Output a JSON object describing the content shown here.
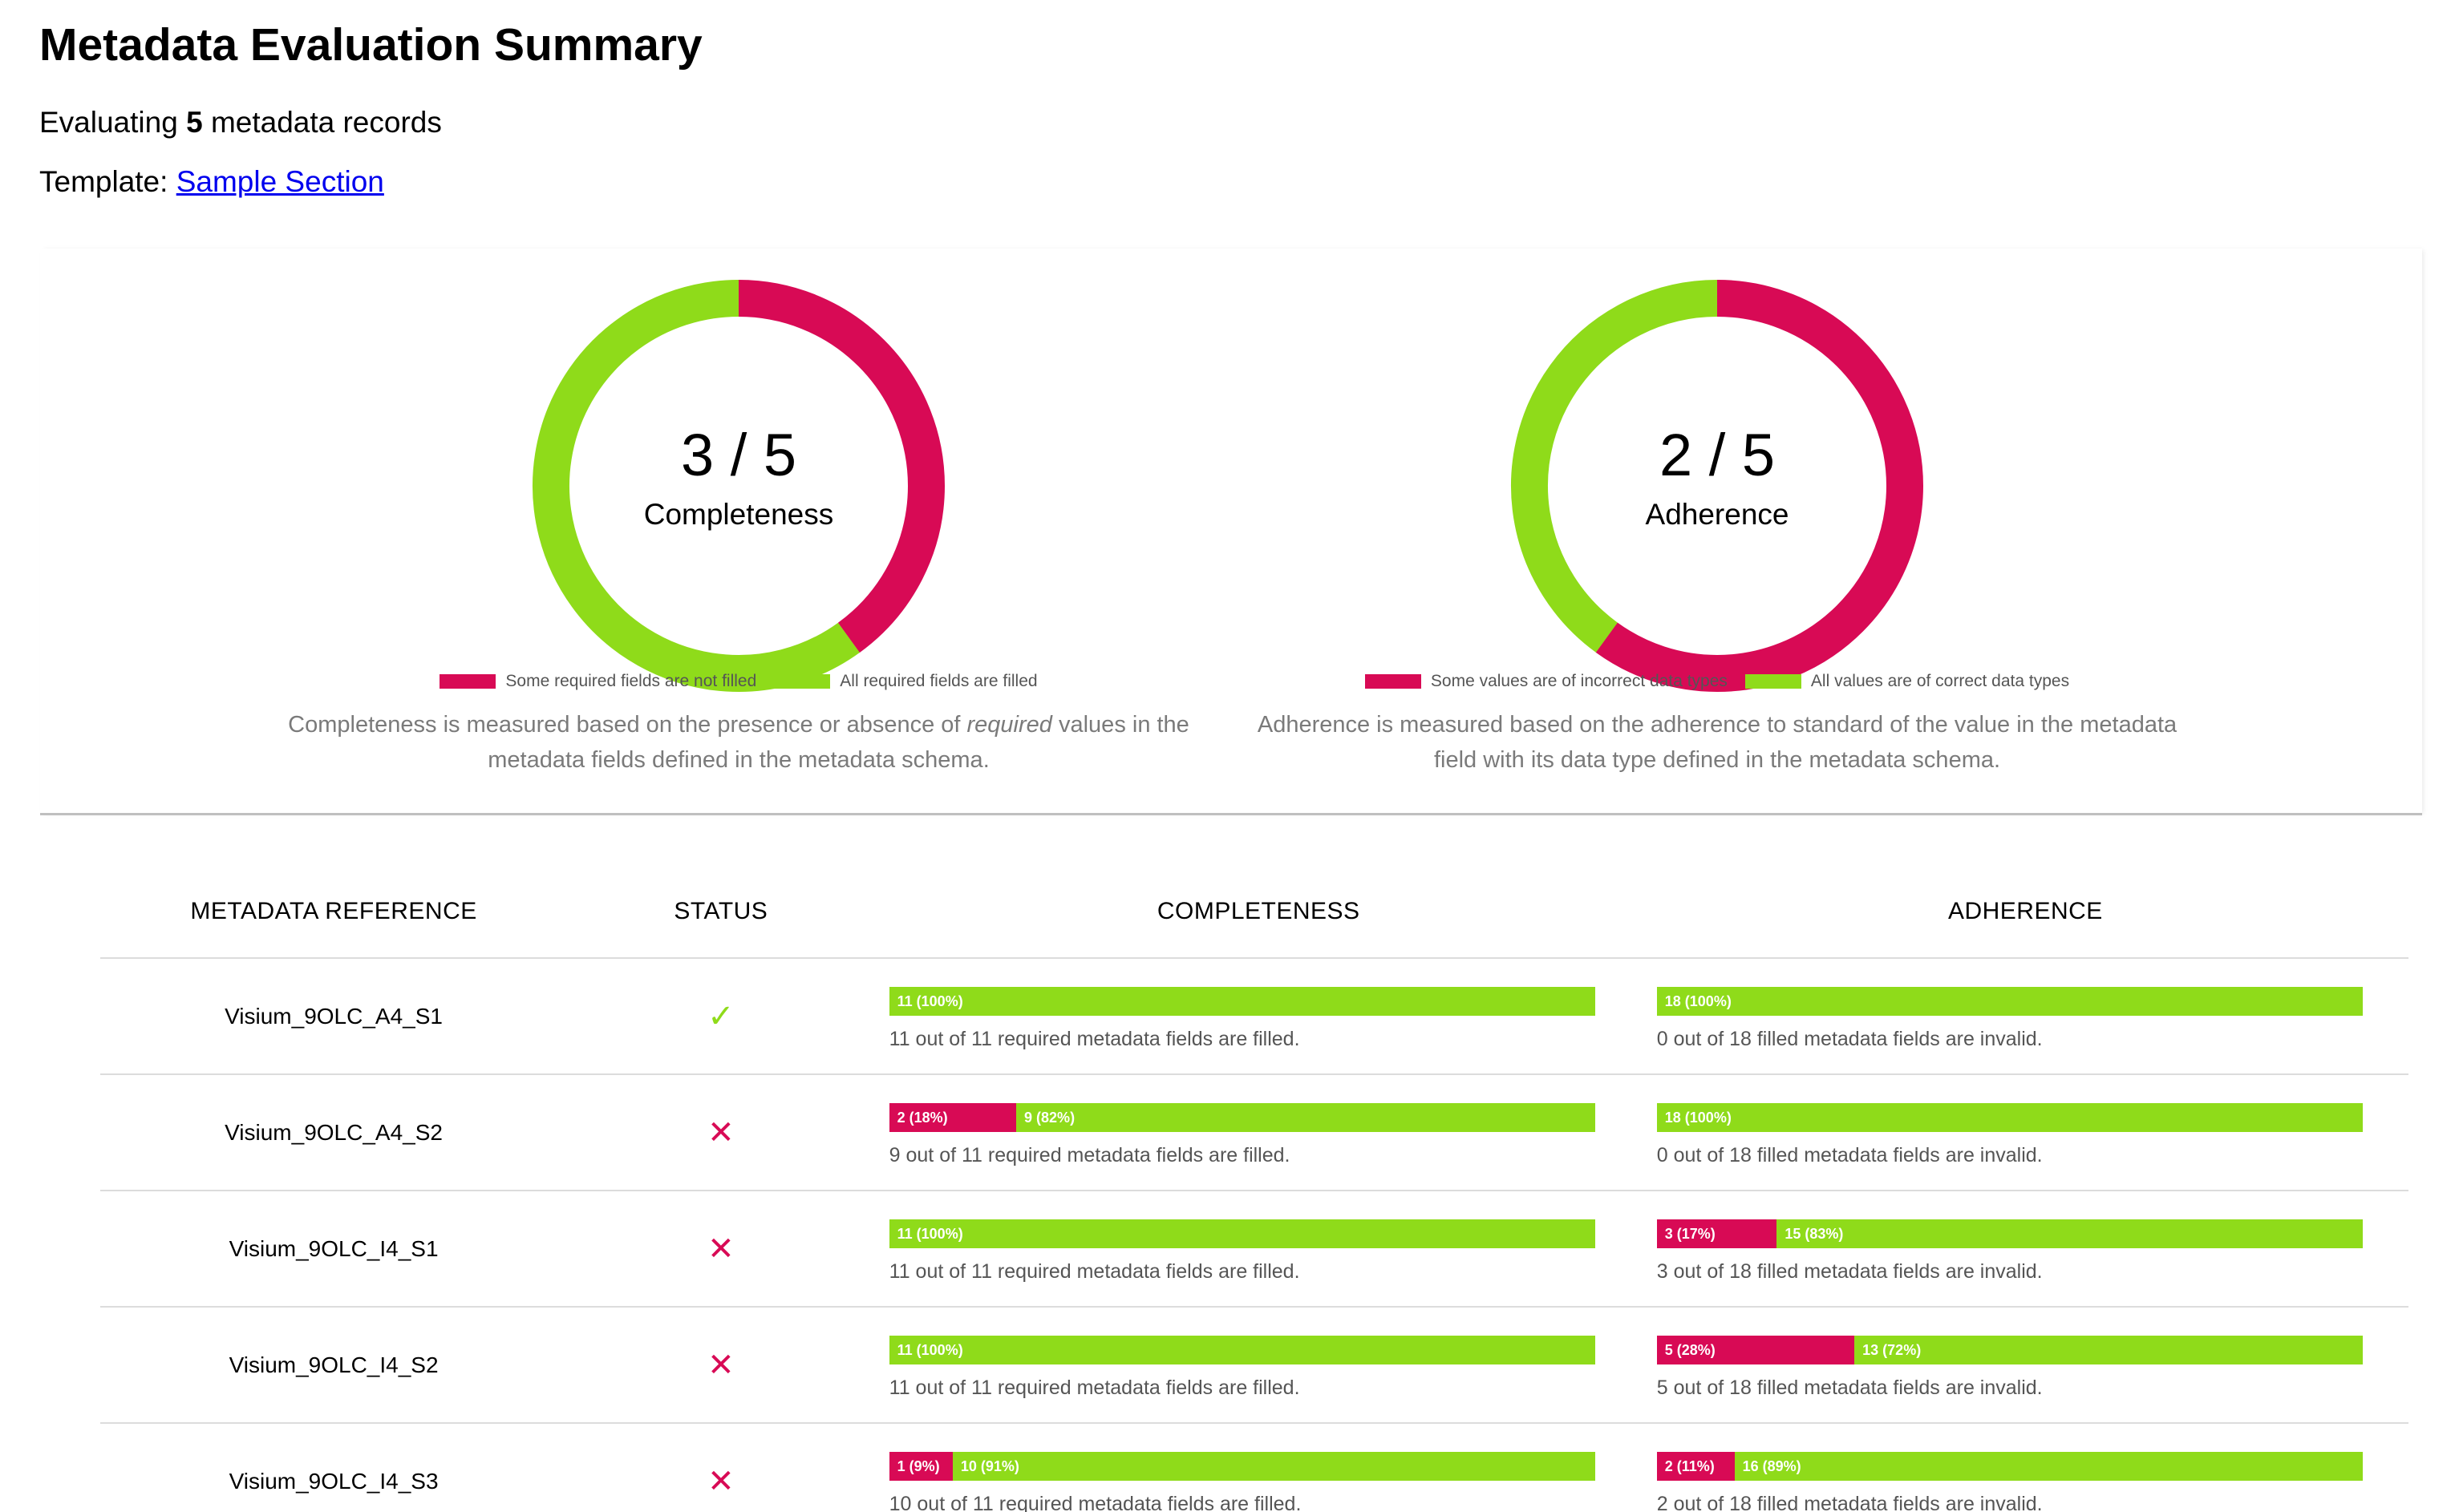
{
  "header": {
    "title": "Metadata Evaluation Summary",
    "evaluating_prefix": "Evaluating",
    "record_count": "5",
    "evaluating_suffix": "metadata records",
    "template_label": "Template:",
    "template_link": "Sample Section"
  },
  "colors": {
    "bad": "#d80a55",
    "good": "#8fdb1a"
  },
  "summary": {
    "completeness": {
      "score": "3 / 5",
      "label": "Completeness",
      "good_fraction": 0.6,
      "legend_bad": "Some required fields are not filled",
      "legend_good": "All required fields are filled",
      "desc_before": "Completeness is measured based on the presence or absence of",
      "desc_em": "required",
      "desc_after": "values in the metadata fields defined in the metadata schema."
    },
    "adherence": {
      "score": "2 / 5",
      "label": "Adherence",
      "good_fraction": 0.4,
      "legend_bad": "Some values are of incorrect data types",
      "legend_good": "All values are of correct data types",
      "desc": "Adherence is measured based on the adherence to standard of the value in the metadata field with its data type defined in the metadata schema."
    }
  },
  "table": {
    "headers": [
      "METADATA REFERENCE",
      "STATUS",
      "COMPLETENESS",
      "ADHERENCE"
    ],
    "rows": [
      {
        "ref": "Visium_9OLC_A4_S1",
        "status": "pass",
        "status_icon": "check-icon",
        "status_glyph": "✓",
        "comp_bad": "",
        "comp_bad_frac": 0,
        "comp_good": "11 (100%)",
        "comp_good_frac": 1,
        "comp_caption": "11 out of 11 required metadata fields are filled.",
        "adh_bad": "",
        "adh_bad_frac": 0,
        "adh_good": "18 (100%)",
        "adh_good_frac": 1,
        "adh_caption": "0 out of 18 filled metadata fields are invalid."
      },
      {
        "ref": "Visium_9OLC_A4_S2",
        "status": "fail",
        "status_icon": "cross-icon",
        "status_glyph": "✕",
        "comp_bad": "2 (18%)",
        "comp_bad_frac": 0.18,
        "comp_good": "9 (82%)",
        "comp_good_frac": 0.82,
        "comp_caption": "9 out of 11 required metadata fields are filled.",
        "adh_bad": "",
        "adh_bad_frac": 0,
        "adh_good": "18 (100%)",
        "adh_good_frac": 1,
        "adh_caption": "0 out of 18 filled metadata fields are invalid."
      },
      {
        "ref": "Visium_9OLC_I4_S1",
        "status": "fail",
        "status_icon": "cross-icon",
        "status_glyph": "✕",
        "comp_bad": "",
        "comp_bad_frac": 0,
        "comp_good": "11 (100%)",
        "comp_good_frac": 1,
        "comp_caption": "11 out of 11 required metadata fields are filled.",
        "adh_bad": "3 (17%)",
        "adh_bad_frac": 0.17,
        "adh_good": "15 (83%)",
        "adh_good_frac": 0.83,
        "adh_caption": "3 out of 18 filled metadata fields are invalid."
      },
      {
        "ref": "Visium_9OLC_I4_S2",
        "status": "fail",
        "status_icon": "cross-icon",
        "status_glyph": "✕",
        "comp_bad": "",
        "comp_bad_frac": 0,
        "comp_good": "11 (100%)",
        "comp_good_frac": 1,
        "comp_caption": "11 out of 11 required metadata fields are filled.",
        "adh_bad": "5 (28%)",
        "adh_bad_frac": 0.28,
        "adh_good": "13 (72%)",
        "adh_good_frac": 0.72,
        "adh_caption": "5 out of 18 filled metadata fields are invalid."
      },
      {
        "ref": "Visium_9OLC_I4_S3",
        "status": "fail",
        "status_icon": "cross-icon",
        "status_glyph": "✕",
        "comp_bad": "1 (9%)",
        "comp_bad_frac": 0.09,
        "comp_good": "10 (91%)",
        "comp_good_frac": 0.91,
        "comp_caption": "10 out of 11 required metadata fields are filled.",
        "adh_bad": "2 (11%)",
        "adh_bad_frac": 0.11,
        "adh_good": "16 (89%)",
        "adh_good_frac": 0.89,
        "adh_caption": "2 out of 18 filled metadata fields are invalid."
      }
    ]
  }
}
